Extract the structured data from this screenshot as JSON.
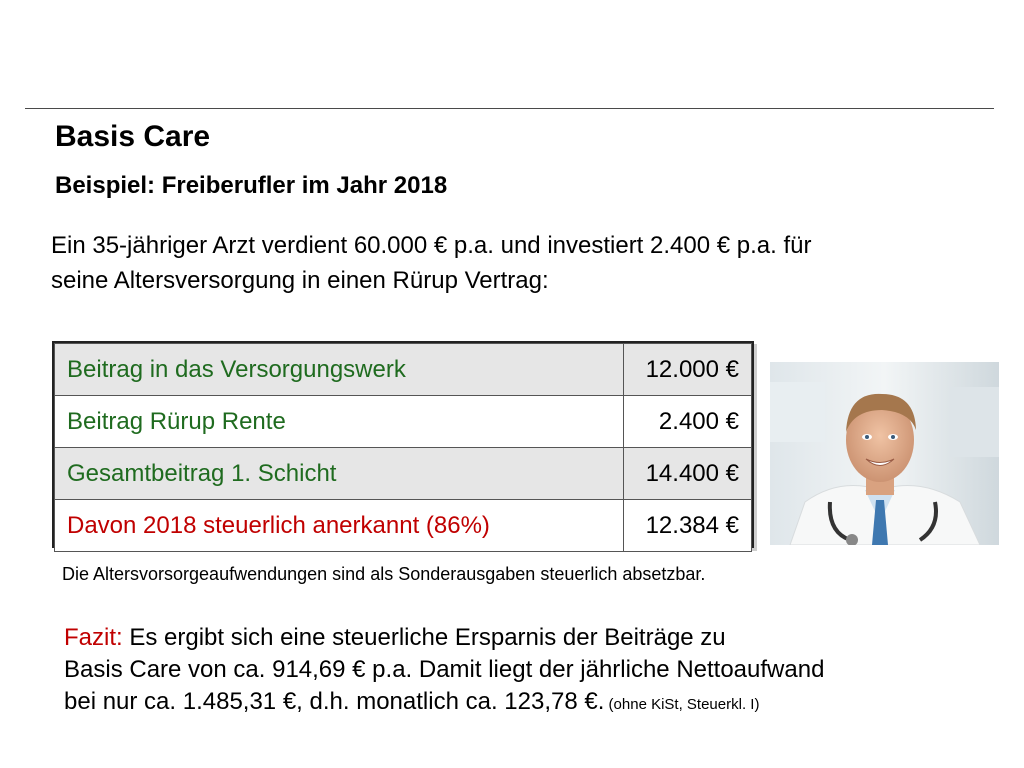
{
  "slide": {
    "title": "Basis Care",
    "subtitle": "Beispiel: Freiberufler im Jahr 2018",
    "intro_line1": "Ein 35-jähriger Arzt verdient 60.000 € p.a. und investiert 2.400 € p.a. für",
    "intro_line2": "seine Altersversorgung in einen Rürup Vertrag:"
  },
  "table": {
    "rows": [
      {
        "label": "Beitrag in das Versorgungswerk",
        "value": "12.000 €"
      },
      {
        "label": "Beitrag Rürup Rente",
        "value": "2.400 €"
      },
      {
        "label": "Gesamtbeitrag 1. Schicht",
        "value": "14.400 €"
      },
      {
        "label": "Davon 2018 steuerlich anerkannt  (86%)",
        "value": "12.384 €"
      }
    ]
  },
  "note": "Die Altersvorsorgeaufwendungen sind als Sonderausgaben steuerlich absetzbar.",
  "fazit": {
    "label": "Fazit:",
    "line1_rest": " Es ergibt sich eine steuerliche Ersparnis der Beiträge zu",
    "line2": "Basis Care von ca. 914,69 € p.a. Damit liegt der jährliche Nettoaufwand",
    "line3": "bei nur ca. 1.485,31 €, d.h. monatlich ca. 123,78 €.",
    "line3_small": " (ohne KiSt, Steuerkl. I)"
  },
  "colors": {
    "green_text": "#1f6b1f",
    "red_text": "#c00000",
    "row_shade": "#e6e6e6"
  },
  "image": {
    "icon": "doctor-portrait-photo"
  }
}
